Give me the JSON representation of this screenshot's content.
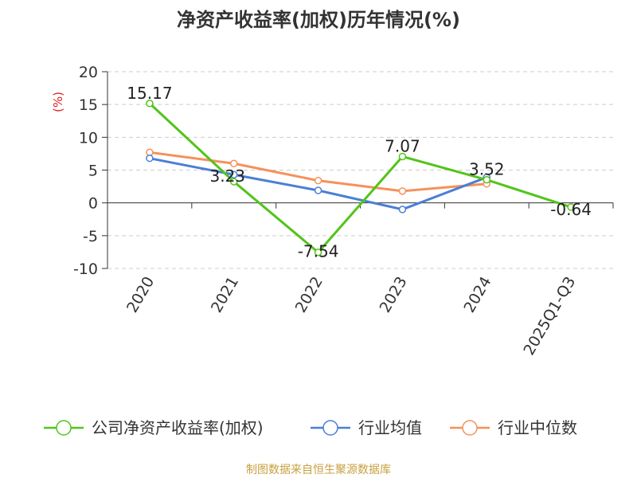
{
  "chart_data": {
    "type": "line",
    "title": "净资产收益率(加权)历年情况(%)",
    "ylabel": "(%)",
    "xlabel": "",
    "categories": [
      "2020",
      "2021",
      "2022",
      "2023",
      "2024",
      "2025Q1-Q3"
    ],
    "ylim": [
      -10,
      20
    ],
    "yticks": [
      "20",
      "15",
      "10",
      "5",
      "0",
      "-5",
      "-10"
    ],
    "grid": true,
    "legend_position": "bottom",
    "series": [
      {
        "name": "公司净资产收益率(加权)",
        "color": "#52c41a",
        "values": [
          15.17,
          3.23,
          -7.54,
          7.07,
          3.52,
          -0.64
        ],
        "labels": [
          "15.17",
          "3.23",
          "-7.54",
          "7.07",
          "3.52",
          "-0.64"
        ]
      },
      {
        "name": "行业均值",
        "color": "#4a7fd6",
        "values": [
          6.8,
          4.3,
          1.9,
          -1.0,
          3.9,
          null
        ]
      },
      {
        "name": "行业中位数",
        "color": "#f5915c",
        "values": [
          7.7,
          6.0,
          3.4,
          1.8,
          2.9,
          null
        ]
      }
    ]
  },
  "source": "制图数据来自恒生聚源数据库"
}
